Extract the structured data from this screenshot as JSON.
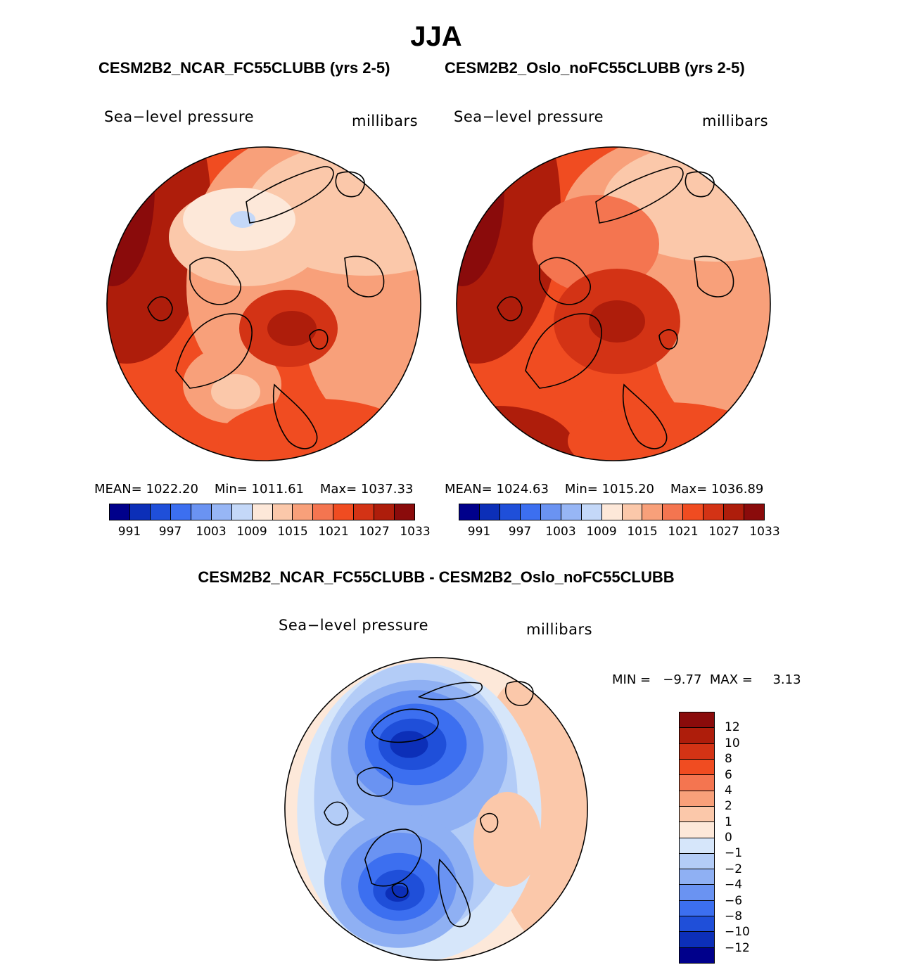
{
  "title": "JJA",
  "panels": [
    {
      "case": "CESM2B2_NCAR_FC55CLUBB (yrs 2-5)",
      "variable": "Sea−level pressure",
      "units": "millibars",
      "stats": {
        "mean": "MEAN=  1022.20",
        "min": "Min=  1011.61",
        "max": "Max=  1037.33"
      }
    },
    {
      "case": "CESM2B2_Oslo_noFC55CLUBB (yrs 2-5)",
      "variable": "Sea−level pressure",
      "units": "millibars",
      "stats": {
        "mean": "MEAN=  1024.63",
        "min": "Min=  1015.20",
        "max": "Max=  1036.89"
      }
    }
  ],
  "abs_colorbar": {
    "colors": [
      "#00008b",
      "#0c2fb8",
      "#1f4fd9",
      "#3c6ff0",
      "#6a93f2",
      "#97b6f5",
      "#c4d8f8",
      "#fde8d9",
      "#fbc8aa",
      "#f8a07a",
      "#f47550",
      "#f04c21",
      "#d33315",
      "#ae1d0b",
      "#8a0b0b"
    ],
    "ticks": [
      "991",
      "997",
      "1003",
      "1009",
      "1015",
      "1021",
      "1027",
      "1033"
    ]
  },
  "difference": {
    "title": "CESM2B2_NCAR_FC55CLUBB - CESM2B2_Oslo_noFC55CLUBB",
    "variable": "Sea−level pressure",
    "units": "millibars",
    "minmax": "MIN =   −9.77  MAX =     3.13"
  },
  "diff_colorbar": {
    "colors": [
      "#8a0b0b",
      "#ae1d0b",
      "#d33315",
      "#f04c21",
      "#f47550",
      "#f8a07a",
      "#fbc8aa",
      "#fde8d9",
      "#d6e6fa",
      "#b3ccf7",
      "#8fb0f3",
      "#6a93f2",
      "#3c6ff0",
      "#1f4fd9",
      "#0c2fb8",
      "#00008b"
    ],
    "ticks": [
      "12",
      "10",
      "8",
      "6",
      "4",
      "2",
      "1",
      "0",
      "−1",
      "−2",
      "−4",
      "−6",
      "−8",
      "−10",
      "−12"
    ]
  },
  "chart_data": [
    {
      "type": "heatmap",
      "title": "CESM2B2_NCAR_FC55CLUBB (yrs 2-5)",
      "variable": "Sea-level pressure",
      "units": "millibars",
      "projection": "polar stereographic (Northern Hemisphere)",
      "mean": 1022.2,
      "min": 1011.61,
      "max": 1037.33,
      "contour_levels": [
        991,
        994,
        997,
        1000,
        1003,
        1006,
        1009,
        1012,
        1015,
        1018,
        1021,
        1024,
        1027,
        1030,
        1033
      ]
    },
    {
      "type": "heatmap",
      "title": "CESM2B2_Oslo_noFC55CLUBB (yrs 2-5)",
      "variable": "Sea-level pressure",
      "units": "millibars",
      "projection": "polar stereographic (Northern Hemisphere)",
      "mean": 1024.63,
      "min": 1015.2,
      "max": 1036.89,
      "contour_levels": [
        991,
        994,
        997,
        1000,
        1003,
        1006,
        1009,
        1012,
        1015,
        1018,
        1021,
        1024,
        1027,
        1030,
        1033
      ]
    },
    {
      "type": "heatmap",
      "title": "CESM2B2_NCAR_FC55CLUBB - CESM2B2_Oslo_noFC55CLUBB",
      "variable": "Sea-level pressure",
      "units": "millibars",
      "projection": "polar stereographic (Northern Hemisphere)",
      "min": -9.77,
      "max": 3.13,
      "contour_levels": [
        -12,
        -10,
        -8,
        -6,
        -4,
        -2,
        -1,
        0,
        1,
        2,
        4,
        6,
        8,
        10,
        12
      ]
    }
  ]
}
